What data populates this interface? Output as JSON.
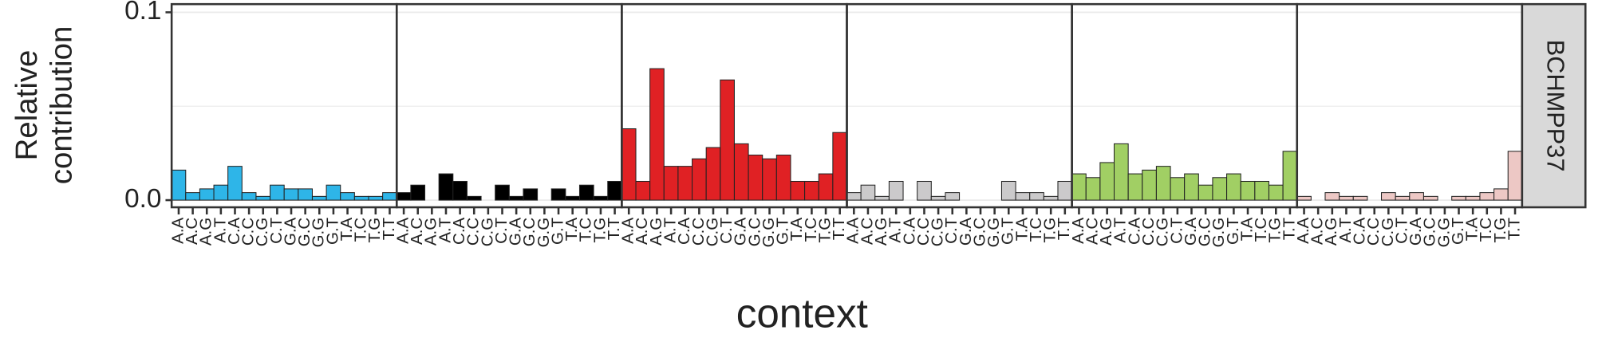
{
  "chart_data": {
    "type": "bar",
    "ylabel_lines": [
      "Relative",
      "contribution"
    ],
    "xlabel": "context",
    "strip_label": "BCHMPP37",
    "ylim": [
      0,
      0.1
    ],
    "yticks": [
      {
        "value": 0,
        "label": "0.0"
      },
      0.1
    ],
    "minor_grid": [
      0.05
    ],
    "grid": true,
    "panels": [
      {
        "color": "#2eb5e8",
        "categories": [
          "A.A",
          "A.C",
          "A.G",
          "A.T",
          "C.A",
          "C.C",
          "C.G",
          "C.T",
          "G.A",
          "G.C",
          "G.G",
          "G.T",
          "T.A",
          "T.C",
          "T.G",
          "T.T"
        ],
        "values": [
          0.016,
          0.004,
          0.006,
          0.008,
          0.018,
          0.004,
          0.002,
          0.008,
          0.006,
          0.006,
          0.002,
          0.008,
          0.004,
          0.002,
          0.002,
          0.004
        ]
      },
      {
        "color": "#000000",
        "categories": [
          "A.A",
          "A.C",
          "A.G",
          "A.T",
          "C.A",
          "C.C",
          "C.G",
          "C.T",
          "G.A",
          "G.C",
          "G.G",
          "G.T",
          "T.A",
          "T.C",
          "T.G",
          "T.T"
        ],
        "values": [
          0.004,
          0.008,
          0,
          0.014,
          0.01,
          0.002,
          0,
          0.008,
          0.002,
          0.006,
          0,
          0.006,
          0.002,
          0.008,
          0.002,
          0.01
        ]
      },
      {
        "color": "#e02124",
        "categories": [
          "A.A",
          "A.C",
          "A.G",
          "A.T",
          "C.A",
          "C.C",
          "C.G",
          "C.T",
          "G.A",
          "G.C",
          "G.G",
          "G.T",
          "T.A",
          "T.C",
          "T.G",
          "T.T"
        ],
        "values": [
          0.038,
          0.01,
          0.07,
          0.018,
          0.018,
          0.022,
          0.028,
          0.064,
          0.03,
          0.024,
          0.022,
          0.024,
          0.01,
          0.01,
          0.014,
          0.036
        ]
      },
      {
        "color": "#cbcacb",
        "categories": [
          "A.A",
          "A.C",
          "A.G",
          "A.T",
          "C.A",
          "C.C",
          "C.G",
          "C.T",
          "G.A",
          "G.C",
          "G.G",
          "G.T",
          "T.A",
          "T.C",
          "T.G",
          "T.T"
        ],
        "values": [
          0.004,
          0.008,
          0.002,
          0.01,
          0,
          0.01,
          0.002,
          0.004,
          0,
          0,
          0,
          0.01,
          0.004,
          0.004,
          0.002,
          0.01
        ]
      },
      {
        "color": "#a1cf64",
        "categories": [
          "A.A",
          "A.C",
          "A.G",
          "A.T",
          "C.A",
          "C.C",
          "C.G",
          "C.T",
          "G.A",
          "G.C",
          "G.G",
          "G.T",
          "T.A",
          "T.C",
          "T.G",
          "T.T"
        ],
        "values": [
          0.014,
          0.012,
          0.02,
          0.03,
          0.014,
          0.016,
          0.018,
          0.012,
          0.014,
          0.008,
          0.012,
          0.014,
          0.01,
          0.01,
          0.008,
          0.026
        ]
      },
      {
        "color": "#edc8c5",
        "categories": [
          "A.A",
          "A.C",
          "A.G",
          "A.T",
          "C.A",
          "C.C",
          "C.G",
          "C.T",
          "G.A",
          "G.C",
          "G.G",
          "G.T",
          "T.A",
          "T.C",
          "T.G",
          "T.T"
        ],
        "values": [
          0.002,
          0,
          0.004,
          0.002,
          0.002,
          0,
          0.004,
          0.002,
          0.004,
          0.002,
          0,
          0.002,
          0.002,
          0.004,
          0.006,
          0.026
        ]
      }
    ]
  }
}
